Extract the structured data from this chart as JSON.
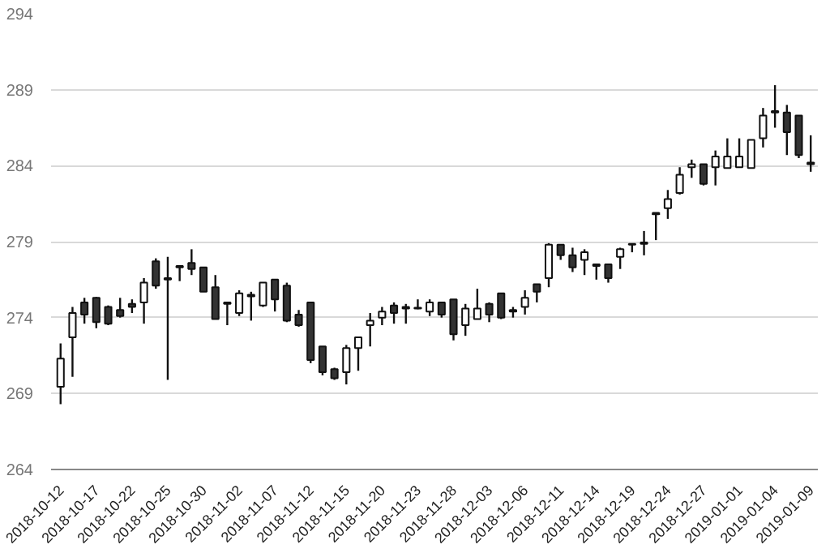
{
  "chart_data": {
    "type": "candlestick",
    "categories": [
      "2018-10-12",
      null,
      null,
      "2018-10-17",
      null,
      null,
      "2018-10-22",
      null,
      null,
      "2018-10-25",
      null,
      null,
      "2018-10-30",
      null,
      null,
      "2018-11-02",
      null,
      null,
      "2018-11-07",
      null,
      null,
      "2018-11-12",
      null,
      null,
      "2018-11-15",
      null,
      null,
      "2018-11-20",
      null,
      null,
      "2018-11-23",
      null,
      null,
      "2018-11-28",
      null,
      null,
      "2018-12-03",
      null,
      null,
      "2018-12-06",
      null,
      null,
      "2018-12-11",
      null,
      null,
      "2018-12-14",
      null,
      null,
      "2018-12-19",
      null,
      null,
      "2018-12-24",
      null,
      null,
      "2018-12-27",
      null,
      null,
      "2019-01-01",
      null,
      null,
      "2019-01-04",
      null,
      null,
      "2019-01-09"
    ],
    "ohlc": [
      [
        269.45,
        272.3,
        268.3,
        271.3
      ],
      [
        272.7,
        274.7,
        270.1,
        274.3
      ],
      [
        275.0,
        275.3,
        273.6,
        274.2
      ],
      [
        275.3,
        275.35,
        273.3,
        273.7
      ],
      [
        274.7,
        274.8,
        273.5,
        273.6
      ],
      [
        274.5,
        275.3,
        274.0,
        274.1
      ],
      [
        274.9,
        275.2,
        274.3,
        274.7
      ],
      [
        275.0,
        276.6,
        273.6,
        276.3
      ],
      [
        277.7,
        277.9,
        275.9,
        276.1
      ],
      [
        276.5,
        278.0,
        269.9,
        276.6
      ],
      [
        277.4,
        277.4,
        276.4,
        277.3
      ],
      [
        277.6,
        278.5,
        276.8,
        277.2
      ],
      [
        277.3,
        277.3,
        275.7,
        275.7
      ],
      [
        276.0,
        276.8,
        273.9,
        273.9
      ],
      [
        275.0,
        275.0,
        273.5,
        274.9
      ],
      [
        274.3,
        275.8,
        274.1,
        275.6
      ],
      [
        275.4,
        275.7,
        273.8,
        275.5
      ],
      [
        274.8,
        276.3,
        274.7,
        276.3
      ],
      [
        276.5,
        276.5,
        274.4,
        275.2
      ],
      [
        276.1,
        276.3,
        273.7,
        273.8
      ],
      [
        274.2,
        274.5,
        273.4,
        273.5
      ],
      [
        275.0,
        275.0,
        271.0,
        271.2
      ],
      [
        272.1,
        272.1,
        270.2,
        270.4
      ],
      [
        270.6,
        270.7,
        269.9,
        270.0
      ],
      [
        270.4,
        272.2,
        269.6,
        272.0
      ],
      [
        272.0,
        272.7,
        270.5,
        272.7
      ],
      [
        273.5,
        274.3,
        272.1,
        273.8
      ],
      [
        274.0,
        274.7,
        273.5,
        274.4
      ],
      [
        274.8,
        275.0,
        273.6,
        274.3
      ],
      [
        274.7,
        274.9,
        273.6,
        274.6
      ],
      [
        274.6,
        275.2,
        274.55,
        274.65
      ],
      [
        274.4,
        275.2,
        274.1,
        275.0
      ],
      [
        275.0,
        275.0,
        274.0,
        274.2
      ],
      [
        275.2,
        275.2,
        272.5,
        272.9
      ],
      [
        273.5,
        274.9,
        272.8,
        274.6
      ],
      [
        273.9,
        275.9,
        273.9,
        274.6
      ],
      [
        274.9,
        275.0,
        273.7,
        274.2
      ],
      [
        275.6,
        275.6,
        273.9,
        274.0
      ],
      [
        274.5,
        274.7,
        274.0,
        274.4
      ],
      [
        274.7,
        275.8,
        274.2,
        275.3
      ],
      [
        276.2,
        276.2,
        275.0,
        275.7
      ],
      [
        276.6,
        278.9,
        276.0,
        278.8
      ],
      [
        278.8,
        278.8,
        277.8,
        278.1
      ],
      [
        278.1,
        278.6,
        277.0,
        277.3
      ],
      [
        277.8,
        278.5,
        276.8,
        278.3
      ],
      [
        277.5,
        277.5,
        276.5,
        277.4
      ],
      [
        277.5,
        277.5,
        276.3,
        276.6
      ],
      [
        278.0,
        278.6,
        277.2,
        278.5
      ],
      [
        278.8,
        278.85,
        278.3,
        278.85
      ],
      [
        278.85,
        279.7,
        278.1,
        278.95
      ],
      [
        280.8,
        280.9,
        279.1,
        280.9
      ],
      [
        281.2,
        282.4,
        280.5,
        281.8
      ],
      [
        282.2,
        283.9,
        282.1,
        283.4
      ],
      [
        283.9,
        284.4,
        283.2,
        284.1
      ],
      [
        284.1,
        284.1,
        282.7,
        282.8
      ],
      [
        283.9,
        285.0,
        282.7,
        284.6
      ],
      [
        283.85,
        285.8,
        283.85,
        284.6
      ],
      [
        283.9,
        285.8,
        283.9,
        284.6
      ],
      [
        283.85,
        285.7,
        283.85,
        285.7
      ],
      [
        285.8,
        287.8,
        285.2,
        287.3
      ],
      [
        287.5,
        289.3,
        286.5,
        287.6
      ],
      [
        287.5,
        288.0,
        284.7,
        286.2
      ],
      [
        287.3,
        287.3,
        284.5,
        284.7
      ],
      [
        284.2,
        286.0,
        283.6,
        284.1
      ]
    ],
    "ylim": [
      264,
      294
    ],
    "yticks": [
      264,
      269,
      274,
      279,
      284,
      289,
      294
    ],
    "grid": "y"
  }
}
